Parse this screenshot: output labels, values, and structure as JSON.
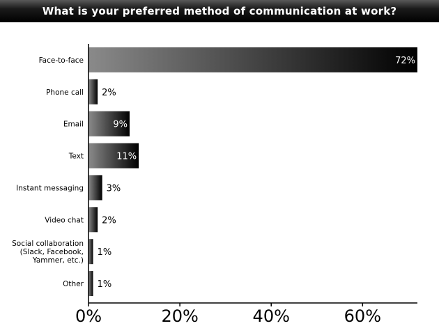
{
  "chart_data": {
    "type": "bar",
    "orientation": "horizontal",
    "title": "What is your preferred method of communication at work?",
    "categories": [
      "Face-to-face",
      "Phone call",
      "Email",
      "Text",
      "Instant messaging",
      "Video chat",
      "Social collaboration\n(Slack, Facebook,\nYammer, etc.)",
      "Other"
    ],
    "values": [
      72,
      2,
      9,
      11,
      3,
      2,
      1,
      1
    ],
    "value_labels": [
      "72%",
      "2%",
      "9%",
      "11%",
      "3%",
      "2%",
      "1%",
      "1%"
    ],
    "xlim": [
      0,
      72
    ],
    "xticks": [
      0,
      20,
      40,
      60
    ],
    "xtick_labels": [
      "0%",
      "20%",
      "40%",
      "60%"
    ],
    "grid": false,
    "bar_gradient": [
      "#8a8a8a",
      "#000000"
    ]
  }
}
